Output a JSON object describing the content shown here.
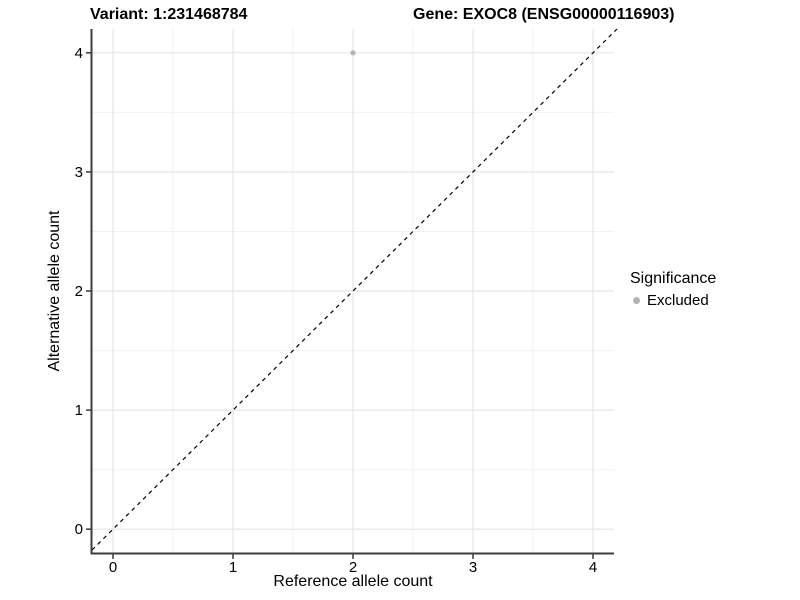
{
  "titles": {
    "variant": "Variant: 1:231468784",
    "gene": "Gene: EXOC8 (ENSG00000116903)"
  },
  "chart_data": {
    "type": "scatter",
    "title_left": "Variant: 1:231468784",
    "title_right": "Gene: EXOC8 (ENSG00000116903)",
    "xlabel": "Reference allele count",
    "ylabel": "Alternative allele count",
    "x_ticks": [
      0,
      1,
      2,
      3,
      4
    ],
    "y_ticks": [
      0,
      1,
      2,
      3,
      4
    ],
    "xlim": [
      -0.175,
      4.175
    ],
    "ylim": [
      -0.2,
      4.2
    ],
    "grid": "major and minor gridlines on white background",
    "minor_step": 0.5,
    "identity_line": {
      "style": "dashed",
      "color": "#000000",
      "slope": 1,
      "intercept": 0
    },
    "series": [
      {
        "name": "Excluded",
        "color": "#b3b3b3",
        "points": [
          {
            "x": 2,
            "y": 4
          }
        ]
      }
    ],
    "legend": {
      "title": "Significance",
      "position": "right",
      "items": [
        {
          "label": "Excluded",
          "color": "#b3b3b3"
        }
      ]
    }
  },
  "colors": {
    "background": "#ffffff",
    "grid_major": "#e5e5e5",
    "grid_minor": "#f2f2f2",
    "axis_line": "#3c3c3c",
    "tick_mark": "#3c3c3c",
    "text": "#000000",
    "point": "#b3b3b3"
  }
}
